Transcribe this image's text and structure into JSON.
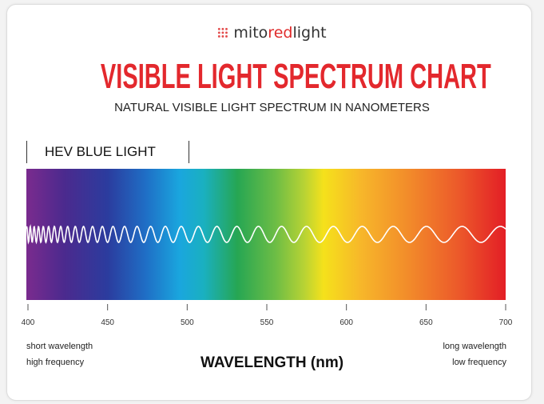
{
  "logo": {
    "part1": "mito",
    "part2": "red",
    "part3": "light"
  },
  "title": "VISIBLE LIGHT SPECTRUM CHART",
  "subtitle": "NATURAL VISIBLE LIGHT SPECTRUM IN NANOMETERS",
  "hev_label": "HEV BLUE LIGHT",
  "axis": {
    "ticks": [
      400,
      450,
      500,
      550,
      600,
      650,
      700
    ],
    "range": [
      400,
      700
    ],
    "label": "WAVELENGTH (nm)"
  },
  "left_notes": {
    "line1": "short wavelength",
    "line2": "high frequency"
  },
  "right_notes": {
    "line1": "long wavelength",
    "line2": "low frequency"
  },
  "colors": {
    "title": "#e3282d",
    "violet": "#7a2b8e",
    "red": "#e31e26",
    "wave": "#ffffff"
  }
}
